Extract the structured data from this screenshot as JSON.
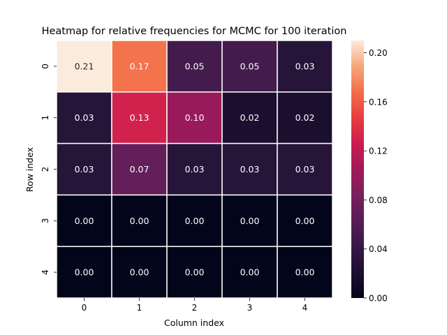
{
  "chart_data": {
    "type": "heatmap",
    "title": "Heatmap for relative frequencies for MCMC for 100 iteration",
    "xlabel": "Column index",
    "ylabel": "Row index",
    "x_categories": [
      "0",
      "1",
      "2",
      "3",
      "4"
    ],
    "y_categories": [
      "0",
      "1",
      "2",
      "3",
      "4"
    ],
    "values": [
      [
        0.21,
        0.17,
        0.05,
        0.05,
        0.03
      ],
      [
        0.03,
        0.13,
        0.1,
        0.02,
        0.02
      ],
      [
        0.03,
        0.07,
        0.03,
        0.03,
        0.03
      ],
      [
        0.0,
        0.0,
        0.0,
        0.0,
        0.0
      ],
      [
        0.0,
        0.0,
        0.0,
        0.0,
        0.0
      ]
    ],
    "annotations": [
      [
        "0.21",
        "0.17",
        "0.05",
        "0.05",
        "0.03"
      ],
      [
        "0.03",
        "0.13",
        "0.10",
        "0.02",
        "0.02"
      ],
      [
        "0.03",
        "0.07",
        "0.03",
        "0.03",
        "0.03"
      ],
      [
        "0.00",
        "0.00",
        "0.00",
        "0.00",
        "0.00"
      ],
      [
        "0.00",
        "0.00",
        "0.00",
        "0.00",
        "0.00"
      ]
    ],
    "colorbar": {
      "range": [
        0,
        0.21
      ],
      "ticks": [
        0.0,
        0.04,
        0.08,
        0.12,
        0.16,
        0.2
      ],
      "tick_labels": [
        "0.00",
        "0.04",
        "0.08",
        "0.12",
        "0.16",
        "0.20"
      ],
      "colormap": "rocket"
    },
    "grid_line_color": "#ffffff"
  }
}
